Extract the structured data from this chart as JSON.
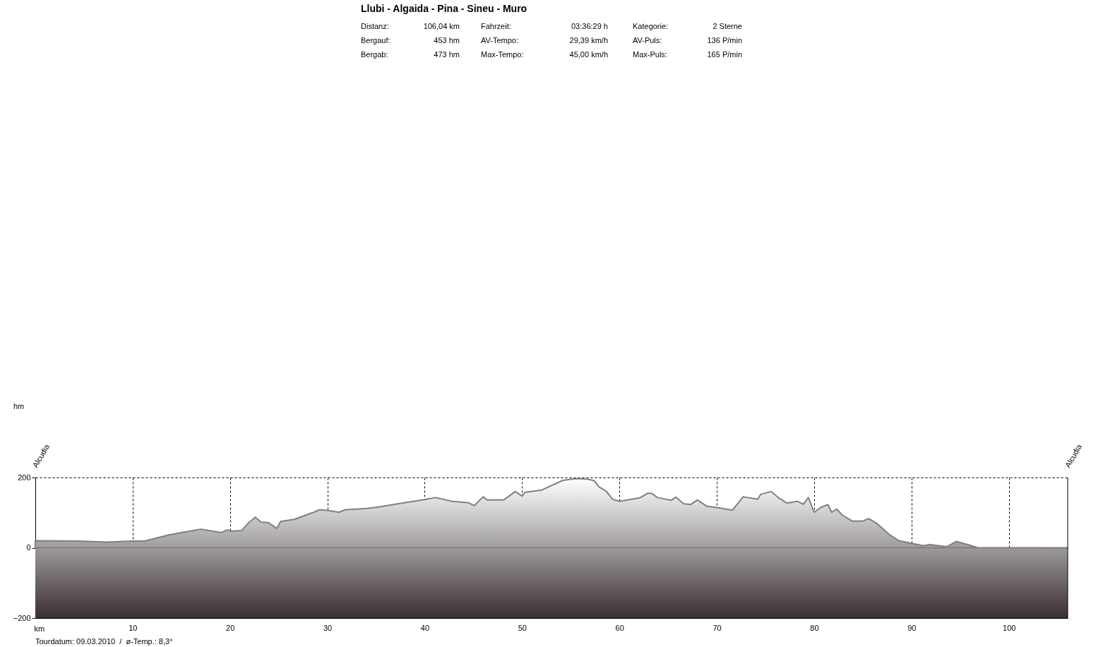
{
  "chart_data": {
    "type": "area",
    "title": "Llubi - Algaida - Pina - Sineu - Muro",
    "xlabel": "km",
    "x": [
      0,
      4.4,
      7.3,
      9.9,
      11.2,
      13.8,
      17,
      19.1,
      19.7,
      20.1,
      21.2,
      21.9,
      22.6,
      23.2,
      23.9,
      24.8,
      25.2,
      26.6,
      28.6,
      29.2,
      30.1,
      31.2,
      31.8,
      34.1,
      35.5,
      36.8,
      37.7,
      40,
      41.1,
      42.8,
      44.5,
      45.1,
      46,
      46.4,
      48.1,
      49.3,
      50,
      50.3,
      52,
      54.2,
      55.6,
      56.8,
      57.4,
      57.9,
      58.6,
      59.3,
      60,
      62.1,
      62.9,
      63.3,
      63.9,
      65.3,
      65.8,
      66.6,
      67.3,
      68,
      69,
      70.1,
      71.6,
      72.7,
      74.2,
      74.5,
      75.6,
      76.3,
      77.2,
      78.3,
      78.9,
      79.4,
      80,
      80.7,
      81.4,
      81.8,
      82.3,
      82.9,
      83.9,
      85,
      85.6,
      86.5,
      87.7,
      88.7,
      90.1,
      91.2,
      91.9,
      93.6,
      94.6,
      95.9,
      96.8,
      99.8,
      103.2,
      103.7,
      106.04
    ],
    "series": [
      {
        "color": "#808080",
        "values": [
          20,
          19,
          16,
          19,
          19,
          37,
          53,
          43,
          51,
          47,
          49,
          71,
          87,
          73,
          72,
          55,
          75,
          81,
          101,
          108,
          106,
          101,
          108,
          112,
          117,
          123,
          127,
          137,
          143,
          132,
          128,
          120,
          145,
          136,
          136,
          160,
          147,
          158,
          164,
          192,
          197,
          195,
          191,
          173,
          162,
          138,
          132,
          142,
          155,
          155,
          143,
          135,
          144,
          125,
          123,
          136,
          118,
          114,
          107,
          145,
          138,
          152,
          160,
          143,
          127,
          132,
          124,
          143,
          101,
          115,
          123,
          101,
          110,
          93,
          76,
          76,
          83,
          68,
          38,
          20,
          12,
          6,
          9,
          3,
          18,
          8,
          0,
          0,
          0,
          -1,
          -1
        ]
      }
    ],
    "xlim": [
      0,
      106.04
    ],
    "ylim": [
      -200,
      200
    ],
    "xticks": [
      10,
      20,
      30,
      40,
      50,
      60,
      70,
      80,
      90,
      100
    ],
    "yticks": [
      -200,
      0,
      200
    ],
    "grid": true,
    "bands": [
      {
        "axis": "y",
        "from": -200,
        "to": 0,
        "color": "#3a2e31"
      }
    ],
    "annotations": [
      "hm",
      "Alcudia",
      "Alcudia",
      "Distanz:",
      "106,04 km",
      "Fahrzeit:",
      "03:36:29 h",
      "Kategorie:",
      "2 Sterne",
      "Bergauf:",
      "453 hm",
      "AV-Tempo:",
      "29,39 km/h",
      "AV-Puls:",
      "136 P/min",
      "Bergab:",
      "473 hm",
      "Max-Tempo:",
      "45,00 km/h",
      "Max-Puls:",
      "165 P/min",
      "Tourdatum: 09.03.2010  /  ø-Temp.: 8,3°"
    ]
  }
}
